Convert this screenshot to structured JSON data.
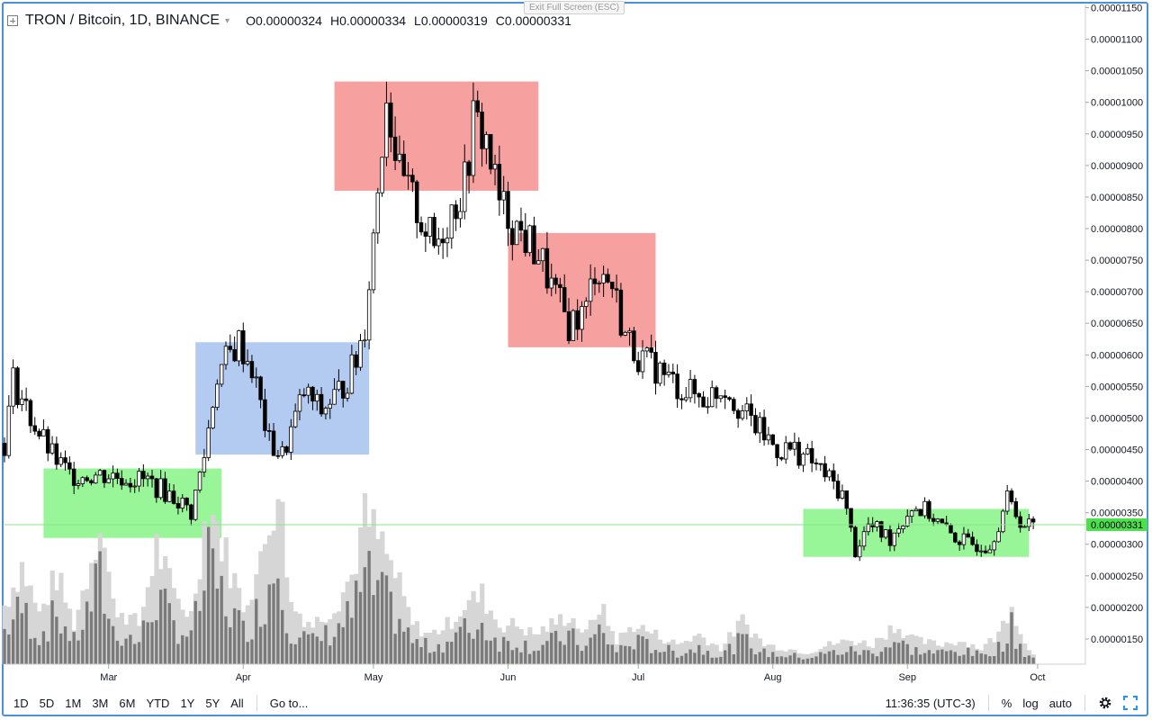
{
  "legend": {
    "symbol": "TRON / Bitcoin, 1D, BINANCE",
    "open_label": "O",
    "open": "0.00000324",
    "high_label": "H",
    "high": "0.00000334",
    "low_label": "L",
    "low": "0.00000319",
    "close_label": "C",
    "close": "0.00000331"
  },
  "fullscreen_tip": "Exit Full Screen (ESC)",
  "price_axis": {
    "last_price": "0.00000331",
    "last_price_color": "#4ce14c"
  },
  "colors": {
    "up_candle": "#ffffff",
    "down_candle": "#000000",
    "green_zone": "#98f598",
    "blue_zone": "#b4cbf1",
    "red_zone": "#f7a0a0",
    "volume_dark": "#7a7a7a",
    "volume_light": "#d6d6d6"
  },
  "toolbar": {
    "ranges": [
      "1D",
      "5D",
      "1M",
      "3M",
      "6M",
      "YTD",
      "1Y",
      "5Y",
      "All"
    ],
    "goto": "Go to...",
    "time": "11:36:35 (UTC-3)",
    "percent": "%",
    "log": "log",
    "auto": "auto",
    "settings_icon": "gear-icon",
    "fullscreen_icon": "fullscreen-icon"
  },
  "chart_data": {
    "type": "candlestick",
    "ylim": [
      1.1e-06,
      1.155e-05
    ],
    "y_ticks": [
      "0.00001150",
      "0.00001100",
      "0.00001050",
      "0.00001000",
      "0.00000950",
      "0.00000900",
      "0.00000850",
      "0.00000800",
      "0.00000750",
      "0.00000700",
      "0.00000650",
      "0.00000600",
      "0.00000550",
      "0.00000500",
      "0.00000450",
      "0.00000400",
      "0.00000350",
      "0.00000300",
      "0.00000250",
      "0.00000200",
      "0.00000150"
    ],
    "x_labels": [
      "Mar",
      "Apr",
      "May",
      "Jun",
      "Jul",
      "Aug",
      "Sep",
      "Oct"
    ],
    "x_start": "2019-02-05",
    "x_end": "2019-10-12",
    "label_dates": [
      "2019-03-01",
      "2019-04-01",
      "2019-05-01",
      "2019-06-01",
      "2019-07-01",
      "2019-08-01",
      "2019-09-01",
      "2019-10-01"
    ],
    "closes_key": [
      [
        "2019-02-05",
        4.6e-06
      ],
      [
        "2019-02-07",
        5.6e-06
      ],
      [
        "2019-02-11",
        5e-06
      ],
      [
        "2019-02-16",
        4.4e-06
      ],
      [
        "2019-02-20",
        4.1e-06
      ],
      [
        "2019-03-01",
        4.1e-06
      ],
      [
        "2019-03-10",
        4e-06
      ],
      [
        "2019-03-17",
        3.7e-06
      ],
      [
        "2019-03-20",
        3.5e-06
      ],
      [
        "2019-03-23",
        4.4e-06
      ],
      [
        "2019-03-26",
        5.7e-06
      ],
      [
        "2019-03-31",
        6.2e-06
      ],
      [
        "2019-04-03",
        5.8e-06
      ],
      [
        "2019-04-07",
        4.6e-06
      ],
      [
        "2019-04-10",
        4.4e-06
      ],
      [
        "2019-04-15",
        5.4e-06
      ],
      [
        "2019-04-19",
        5.1e-06
      ],
      [
        "2019-04-24",
        5.5e-06
      ],
      [
        "2019-04-27",
        5.9e-06
      ],
      [
        "2019-04-29",
        6.5e-06
      ],
      [
        "2019-05-01",
        7.9e-06
      ],
      [
        "2019-05-04",
        1.02e-05
      ],
      [
        "2019-05-07",
        8.8e-06
      ],
      [
        "2019-05-11",
        8.3e-06
      ],
      [
        "2019-05-15",
        7.7e-06
      ],
      [
        "2019-05-19",
        8.3e-06
      ],
      [
        "2019-05-22",
        8.7e-06
      ],
      [
        "2019-05-24",
        9.7e-06
      ],
      [
        "2019-05-27",
        9.4e-06
      ],
      [
        "2019-05-30",
        8.4e-06
      ],
      [
        "2019-06-03",
        8e-06
      ],
      [
        "2019-06-08",
        7.6e-06
      ],
      [
        "2019-06-12",
        6.9e-06
      ],
      [
        "2019-06-15",
        6.5e-06
      ],
      [
        "2019-06-19",
        6.7e-06
      ],
      [
        "2019-06-21",
        7.4e-06
      ],
      [
        "2019-06-25",
        7.1e-06
      ],
      [
        "2019-06-28",
        6.3e-06
      ],
      [
        "2019-07-02",
        5.9e-06
      ],
      [
        "2019-07-05",
        5.8e-06
      ],
      [
        "2019-07-10",
        5.5e-06
      ],
      [
        "2019-07-16",
        5.3e-06
      ],
      [
        "2019-07-21",
        5.5e-06
      ],
      [
        "2019-07-25",
        5.1e-06
      ],
      [
        "2019-07-29",
        4.8e-06
      ],
      [
        "2019-08-02",
        4.5e-06
      ],
      [
        "2019-08-06",
        4.5e-06
      ],
      [
        "2019-08-10",
        4.3e-06
      ],
      [
        "2019-08-13",
        4.1e-06
      ],
      [
        "2019-08-17",
        3.8e-06
      ],
      [
        "2019-08-20",
        2.9e-06
      ],
      [
        "2019-08-23",
        3.3e-06
      ],
      [
        "2019-08-28",
        3.1e-06
      ],
      [
        "2019-09-02",
        3.6e-06
      ],
      [
        "2019-09-06",
        3.5e-06
      ],
      [
        "2019-09-10",
        3.2e-06
      ],
      [
        "2019-09-15",
        3e-06
      ],
      [
        "2019-09-20",
        3e-06
      ],
      [
        "2019-09-24",
        3.7e-06
      ],
      [
        "2019-09-28",
        3.3e-06
      ],
      [
        "2019-09-30",
        3.3e-06
      ]
    ],
    "volume_key": [
      [
        "2019-02-05",
        0.3
      ],
      [
        "2019-02-09",
        0.5
      ],
      [
        "2019-02-13",
        0.25
      ],
      [
        "2019-02-17",
        0.45
      ],
      [
        "2019-02-21",
        0.2
      ],
      [
        "2019-02-24",
        0.45
      ],
      [
        "2019-02-27",
        0.75
      ],
      [
        "2019-03-02",
        0.3
      ],
      [
        "2019-03-08",
        0.2
      ],
      [
        "2019-03-12",
        0.6
      ],
      [
        "2019-03-16",
        0.35
      ],
      [
        "2019-03-20",
        0.25
      ],
      [
        "2019-03-24",
        0.85
      ],
      [
        "2019-03-28",
        0.55
      ],
      [
        "2019-04-01",
        0.3
      ],
      [
        "2019-04-05",
        0.5
      ],
      [
        "2019-04-09",
        0.95
      ],
      [
        "2019-04-12",
        0.3
      ],
      [
        "2019-04-17",
        0.2
      ],
      [
        "2019-04-22",
        0.3
      ],
      [
        "2019-04-26",
        0.45
      ],
      [
        "2019-04-29",
        0.75
      ],
      [
        "2019-05-03",
        0.6
      ],
      [
        "2019-05-06",
        0.45
      ],
      [
        "2019-05-10",
        0.2
      ],
      [
        "2019-05-14",
        0.15
      ],
      [
        "2019-05-18",
        0.2
      ],
      [
        "2019-05-22",
        0.3
      ],
      [
        "2019-05-26",
        0.35
      ],
      [
        "2019-05-30",
        0.2
      ],
      [
        "2019-06-03",
        0.2
      ],
      [
        "2019-06-07",
        0.15
      ],
      [
        "2019-06-11",
        0.2
      ],
      [
        "2019-06-15",
        0.25
      ],
      [
        "2019-06-19",
        0.15
      ],
      [
        "2019-06-22",
        0.3
      ],
      [
        "2019-06-26",
        0.12
      ],
      [
        "2019-06-30",
        0.2
      ],
      [
        "2019-07-05",
        0.15
      ],
      [
        "2019-07-10",
        0.1
      ],
      [
        "2019-07-15",
        0.15
      ],
      [
        "2019-07-20",
        0.08
      ],
      [
        "2019-07-25",
        0.22
      ],
      [
        "2019-07-30",
        0.1
      ],
      [
        "2019-08-04",
        0.08
      ],
      [
        "2019-08-09",
        0.06
      ],
      [
        "2019-08-14",
        0.1
      ],
      [
        "2019-08-19",
        0.12
      ],
      [
        "2019-08-24",
        0.1
      ],
      [
        "2019-08-29",
        0.2
      ],
      [
        "2019-09-03",
        0.12
      ],
      [
        "2019-09-08",
        0.1
      ],
      [
        "2019-09-13",
        0.12
      ],
      [
        "2019-09-18",
        0.08
      ],
      [
        "2019-09-22",
        0.15
      ],
      [
        "2019-09-25",
        0.32
      ],
      [
        "2019-09-28",
        0.1
      ],
      [
        "2019-09-30",
        0.06
      ]
    ],
    "zones": [
      {
        "color": "green",
        "from": "2019-02-14",
        "to": "2019-03-27",
        "low": 3.1e-06,
        "high": 4.2e-06
      },
      {
        "color": "blue",
        "from": "2019-03-21",
        "to": "2019-04-30",
        "low": 4.42e-06,
        "high": 6.2e-06
      },
      {
        "color": "red",
        "from": "2019-04-22",
        "to": "2019-06-08",
        "low": 8.6e-06,
        "high": 1.033e-05
      },
      {
        "color": "red",
        "from": "2019-06-01",
        "to": "2019-07-05",
        "low": 6.12e-06,
        "high": 7.93e-06
      },
      {
        "color": "green",
        "from": "2019-08-08",
        "to": "2019-09-29",
        "low": 2.8e-06,
        "high": 3.56e-06
      }
    ]
  }
}
